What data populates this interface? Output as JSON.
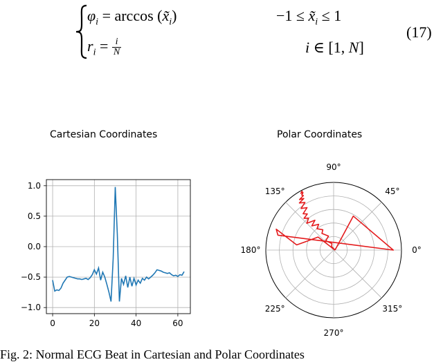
{
  "equation": {
    "line1_lhs": "φi = arccos (x̃i)",
    "line1_cond": "−1 ≤ x̃i ≤ 1",
    "line2_lhs": "ri = i/N",
    "line2_cond": "i ∈ [1, N]",
    "number": "(17)"
  },
  "chart_data": [
    {
      "type": "line",
      "title": "Cartesian Coordinates",
      "xlim": [
        -3,
        66
      ],
      "ylim": [
        -1.1,
        1.1
      ],
      "xticks": [
        0,
        20,
        40,
        60
      ],
      "xtick_labels": [
        "0",
        "20",
        "40",
        "60"
      ],
      "yticks": [
        1.0,
        0.5,
        0.0,
        -0.5,
        -1.0
      ],
      "ytick_labels": [
        "1.0",
        "0.5",
        "0.0",
        "−0.5",
        "−1.0"
      ],
      "grid": true,
      "series": [
        {
          "color": "#1f77b4",
          "x": [
            0,
            1,
            2,
            3,
            4,
            5,
            6,
            7,
            8,
            9,
            10,
            11,
            12,
            13,
            14,
            15,
            16,
            17,
            18,
            19,
            20,
            21,
            22,
            23,
            24,
            25,
            26,
            27,
            28,
            29,
            30,
            31,
            32,
            33,
            34,
            35,
            36,
            37,
            38,
            39,
            40,
            41,
            42,
            43,
            44,
            45,
            46,
            47,
            48,
            49,
            50,
            51,
            52,
            53,
            54,
            55,
            56,
            57,
            58,
            59,
            60,
            61,
            62,
            63
          ],
          "y": [
            -0.55,
            -0.73,
            -0.71,
            -0.72,
            -0.68,
            -0.6,
            -0.55,
            -0.5,
            -0.49,
            -0.5,
            -0.51,
            -0.52,
            -0.53,
            -0.53,
            -0.54,
            -0.53,
            -0.52,
            -0.54,
            -0.51,
            -0.46,
            -0.38,
            -0.45,
            -0.35,
            -0.55,
            -0.42,
            -0.5,
            -0.62,
            -0.75,
            -0.9,
            -0.2,
            0.98,
            0.2,
            -0.9,
            -0.52,
            -0.62,
            -0.48,
            -0.67,
            -0.5,
            -0.65,
            -0.52,
            -0.63,
            -0.55,
            -0.6,
            -0.52,
            -0.55,
            -0.5,
            -0.53,
            -0.5,
            -0.47,
            -0.43,
            -0.38,
            -0.39,
            -0.4,
            -0.42,
            -0.43,
            -0.44,
            -0.43,
            -0.46,
            -0.48,
            -0.47,
            -0.49,
            -0.46,
            -0.47,
            -0.41
          ]
        }
      ]
    },
    {
      "type": "polar",
      "title": "Polar Coordinates",
      "angle_labels": [
        "0°",
        "45°",
        "90°",
        "135°",
        "180°",
        "225°",
        "270°",
        "315°"
      ],
      "angles_deg": [
        0,
        45,
        90,
        135,
        180,
        225,
        270,
        315
      ],
      "rmax": 1.0,
      "radial_rings": [
        0.2,
        0.4,
        0.6,
        0.8,
        1.0
      ],
      "grid": true,
      "series": [
        {
          "color": "#e41a1c",
          "points_deg_r": [
            [
              0,
              0.02
            ],
            [
              120,
              0.06
            ],
            [
              105,
              0.1
            ],
            [
              130,
              0.18
            ],
            [
              110,
              0.22
            ],
            [
              125,
              0.3
            ],
            [
              118,
              0.34
            ],
            [
              128,
              0.4
            ],
            [
              120,
              0.44
            ],
            [
              132,
              0.48
            ],
            [
              122,
              0.52
            ],
            [
              135,
              0.56
            ],
            [
              128,
              0.6
            ],
            [
              133,
              0.64
            ],
            [
              126,
              0.66
            ],
            [
              130,
              0.7
            ],
            [
              122,
              0.74
            ],
            [
              128,
              0.78
            ],
            [
              121,
              0.82
            ],
            [
              126,
              0.86
            ],
            [
              120,
              0.88
            ],
            [
              124,
              0.9
            ],
            [
              119,
              0.92
            ],
            [
              120,
              0.94
            ],
            [
              118,
              0.96
            ],
            [
              120,
              0.97
            ],
            [
              118,
              0.98
            ],
            [
              119,
              0.99
            ]
          ]
        },
        {
          "color": "#e41a1c",
          "points_deg_r": [
            [
              0,
              0.02
            ],
            [
              60,
              0.58
            ],
            [
              0,
              0.88
            ],
            [
              165,
              0.85
            ],
            [
              160,
              0.9
            ],
            [
              172,
              0.55
            ],
            [
              165,
              0.45
            ],
            [
              140,
              0.3
            ],
            [
              0,
              0.02
            ]
          ]
        }
      ]
    }
  ],
  "caption": "Fig. 2: Normal ECG Beat in Cartesian and Polar Coordinates"
}
